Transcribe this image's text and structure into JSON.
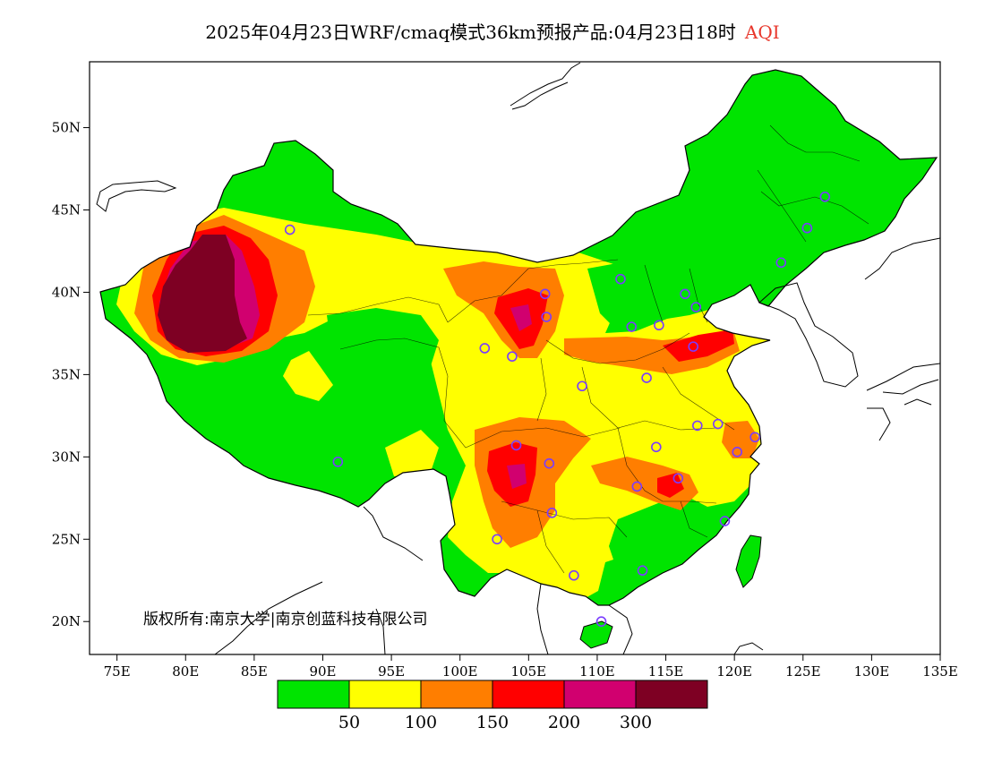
{
  "title": {
    "text": "2025年04月23日WRF/cmaq模式36km预报产品:04月23日18时",
    "variable": "AQI",
    "variable_color": "#e8362b"
  },
  "map": {
    "lon_range": [
      73,
      135
    ],
    "lat_range": [
      18,
      54
    ],
    "x_ticks": [
      {
        "lon": 75,
        "label": "75E"
      },
      {
        "lon": 80,
        "label": "80E"
      },
      {
        "lon": 85,
        "label": "85E"
      },
      {
        "lon": 90,
        "label": "90E"
      },
      {
        "lon": 95,
        "label": "95E"
      },
      {
        "lon": 100,
        "label": "100E"
      },
      {
        "lon": 105,
        "label": "105E"
      },
      {
        "lon": 110,
        "label": "110E"
      },
      {
        "lon": 115,
        "label": "115E"
      },
      {
        "lon": 120,
        "label": "120E"
      },
      {
        "lon": 125,
        "label": "125E"
      },
      {
        "lon": 130,
        "label": "130E"
      },
      {
        "lon": 135,
        "label": "135E"
      }
    ],
    "y_ticks": [
      {
        "lat": 20,
        "label": "20N"
      },
      {
        "lat": 25,
        "label": "25N"
      },
      {
        "lat": 30,
        "label": "30N"
      },
      {
        "lat": 35,
        "label": "35N"
      },
      {
        "lat": 40,
        "label": "40N"
      },
      {
        "lat": 45,
        "label": "45N"
      },
      {
        "lat": 50,
        "label": "50N"
      }
    ],
    "copyright": "版权所有:南京大学|南京创蓝科技有限公司",
    "colors": {
      "good": "#00e400",
      "moderate": "#ffff00",
      "usg": "#ff7e00",
      "unhealthy": "#ff0000",
      "very_unhealthy": "#d1006f",
      "hazardous": "#7e0023",
      "city_marker": "#7a3cff"
    },
    "cities": [
      {
        "lon": 87.6,
        "lat": 43.8
      },
      {
        "lon": 91.1,
        "lat": 29.7
      },
      {
        "lon": 101.8,
        "lat": 36.6
      },
      {
        "lon": 103.8,
        "lat": 36.1
      },
      {
        "lon": 106.3,
        "lat": 38.5
      },
      {
        "lon": 106.2,
        "lat": 39.9
      },
      {
        "lon": 111.7,
        "lat": 40.8
      },
      {
        "lon": 112.5,
        "lat": 37.9
      },
      {
        "lon": 114.5,
        "lat": 38.0
      },
      {
        "lon": 116.4,
        "lat": 39.9
      },
      {
        "lon": 117.2,
        "lat": 39.1
      },
      {
        "lon": 117.0,
        "lat": 36.7
      },
      {
        "lon": 113.6,
        "lat": 34.8
      },
      {
        "lon": 108.9,
        "lat": 34.3
      },
      {
        "lon": 104.1,
        "lat": 30.7
      },
      {
        "lon": 106.5,
        "lat": 29.6
      },
      {
        "lon": 106.7,
        "lat": 26.6
      },
      {
        "lon": 102.7,
        "lat": 25.0
      },
      {
        "lon": 108.3,
        "lat": 22.8
      },
      {
        "lon": 113.3,
        "lat": 23.1
      },
      {
        "lon": 110.3,
        "lat": 20.0
      },
      {
        "lon": 112.9,
        "lat": 28.2
      },
      {
        "lon": 114.3,
        "lat": 30.6
      },
      {
        "lon": 115.9,
        "lat": 28.7
      },
      {
        "lon": 117.3,
        "lat": 31.9
      },
      {
        "lon": 118.8,
        "lat": 32.0
      },
      {
        "lon": 120.2,
        "lat": 30.3
      },
      {
        "lon": 121.5,
        "lat": 31.2
      },
      {
        "lon": 119.3,
        "lat": 26.1
      },
      {
        "lon": 123.4,
        "lat": 41.8
      },
      {
        "lon": 125.3,
        "lat": 43.9
      },
      {
        "lon": 126.6,
        "lat": 45.8
      }
    ]
  },
  "legend": {
    "swatches": [
      "#00e400",
      "#ffff00",
      "#ff7e00",
      "#ff0000",
      "#d1006f",
      "#7e0023"
    ],
    "labels": [
      "50",
      "100",
      "150",
      "200",
      "300"
    ]
  }
}
